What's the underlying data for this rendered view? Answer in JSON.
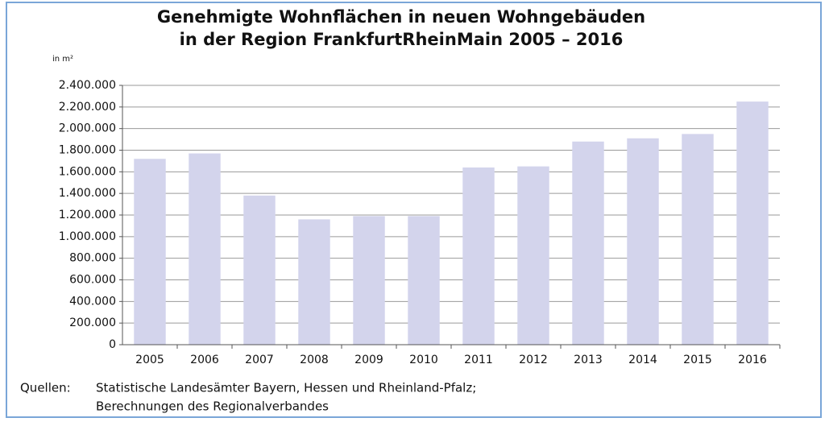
{
  "chart_data": {
    "type": "bar",
    "title": [
      "Genehmigte Wohnflächen in neuen Wohngebäuden",
      "in der Region FrankfurtRheinMain 2005 – 2016"
    ],
    "y_label": "in m²",
    "categories": [
      "2005",
      "2006",
      "2007",
      "2008",
      "2009",
      "2010",
      "2011",
      "2012",
      "2013",
      "2014",
      "2015",
      "2016"
    ],
    "values": [
      1720000,
      1770000,
      1380000,
      1160000,
      1190000,
      1190000,
      1640000,
      1650000,
      1880000,
      1910000,
      1950000,
      2250000
    ],
    "color": "#d3d4ec",
    "ylim": [
      0,
      2400000
    ],
    "yticks": [
      0,
      {
        "value": 200000,
        "label": "200.000"
      },
      {
        "value": 400000,
        "label": "400.000"
      },
      {
        "value": 600000,
        "label": "600.000"
      },
      {
        "value": 800000,
        "label": "800.000"
      },
      {
        "value": 1000000,
        "label": "1.000.000"
      },
      {
        "value": 1200000,
        "label": "1.200.000"
      },
      {
        "value": 1400000,
        "label": "1.400.000"
      },
      {
        "value": 1600000,
        "label": "1.600.000"
      },
      {
        "value": 1800000,
        "label": "1.800.000"
      },
      {
        "value": 2000000,
        "label": "2.000.000"
      },
      {
        "value": 2200000,
        "label": "2.200.000"
      },
      {
        "value": 2400000,
        "label": "2.400.000"
      }
    ],
    "grid": true,
    "source": [
      "Quellen:",
      "Statistische Landesämter Bayern, Hessen und Rheinland-Pfalz;",
      "Berechnungen des Regionalverbandes"
    ]
  }
}
